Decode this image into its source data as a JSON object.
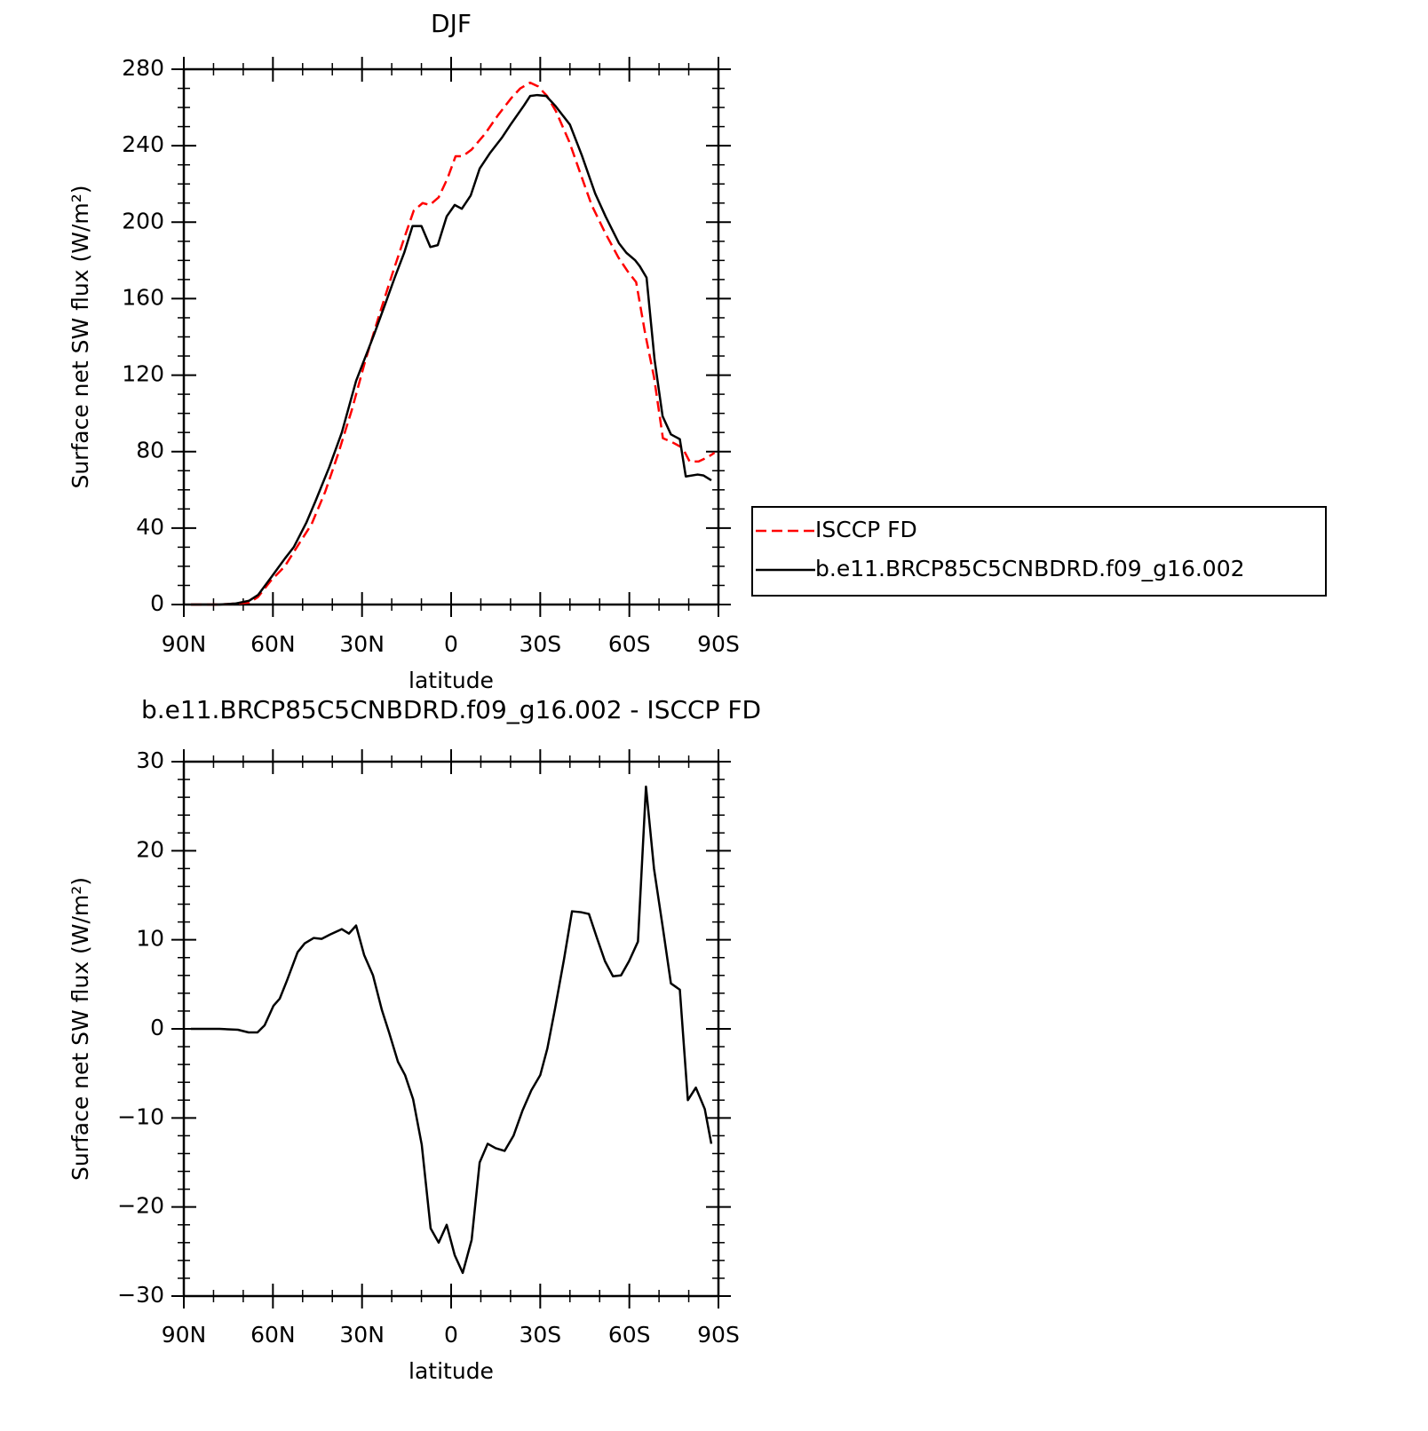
{
  "chart_data": [
    {
      "type": "line",
      "title": "DJF",
      "xlabel": "latitude",
      "ylabel": "Surface net SW flux (W/m²)",
      "xlim": [
        90,
        -90
      ],
      "ylim": [
        0,
        280
      ],
      "xticks": [
        {
          "value": 90,
          "label": "90N"
        },
        {
          "value": 60,
          "label": "60N"
        },
        {
          "value": 30,
          "label": "30N"
        },
        0,
        {
          "value": -30,
          "label": "30S"
        },
        {
          "value": -60,
          "label": "60S"
        },
        {
          "value": -90,
          "label": "90S"
        }
      ],
      "yticks": [
        0,
        40,
        80,
        120,
        160,
        200,
        240,
        280
      ],
      "legend": "right",
      "series": [
        {
          "name": "ISCCP FD",
          "color": "#ff0000",
          "dash": true,
          "x": [
            87.6,
            78,
            72.7,
            68,
            65,
            60.7,
            56,
            51.7,
            47,
            42.4,
            38,
            33.4,
            29,
            24.5,
            20,
            15.5,
            12.6,
            9.6,
            7.2,
            4.2,
            1.2,
            -1.5,
            -3.9,
            -6.9,
            -11.3,
            -15.8,
            -20.3,
            -23.3,
            -26.6,
            -29.3,
            -32.3,
            -35.3,
            -39.8,
            -43.4,
            -47.3,
            -51.8,
            -56.3,
            -59.3,
            -62.3,
            -65.3,
            -68.3,
            -71.3,
            -74.3,
            -77.9,
            -80.3,
            -83.3,
            -86.3,
            -88.7
          ],
          "values": [
            0,
            0,
            0.5,
            1,
            4,
            12.5,
            20,
            30.6,
            42,
            59,
            79,
            102,
            127,
            150,
            172,
            193,
            206,
            210,
            209,
            213,
            223,
            234.5,
            234.5,
            238,
            246,
            256,
            265,
            270,
            273,
            271,
            266,
            258,
            242,
            226,
            209,
            194.6,
            181.6,
            174.6,
            168.6,
            142,
            119,
            87,
            85,
            82,
            74.8,
            74.8,
            77,
            79.4
          ]
        },
        {
          "name": "b.e11.BRCP85C5CNBDRD.f09_g16.002",
          "color": "#000000",
          "dash": false,
          "x": [
            87.6,
            78,
            72.7,
            68,
            65,
            60.7,
            56,
            53,
            48.7,
            45.7,
            41,
            36.8,
            32,
            29,
            26,
            22,
            19,
            15.8,
            13,
            10,
            7,
            4.5,
            1.5,
            -1.2,
            -3.6,
            -6.6,
            -9.6,
            -13,
            -17,
            -20,
            -24.5,
            -26.6,
            -29,
            -32,
            -35,
            -40,
            -44,
            -48.5,
            -52,
            -56.5,
            -59,
            -62,
            -63.5,
            -65.8,
            -68.5,
            -71.2,
            -74,
            -77,
            -79,
            -83,
            -85,
            -87.6
          ],
          "values": [
            0,
            0,
            0.5,
            2,
            5,
            14,
            24,
            30,
            43,
            54,
            72,
            90,
            117,
            129,
            141,
            158,
            171,
            184,
            198,
            198,
            187,
            188,
            203,
            209,
            207,
            214,
            228,
            236,
            244,
            251,
            261,
            266,
            266.5,
            266,
            261,
            251,
            235,
            215,
            203,
            189,
            184,
            180,
            177,
            171,
            128,
            98.5,
            89,
            86.5,
            67,
            68,
            67.5,
            65
          ]
        }
      ]
    },
    {
      "type": "line",
      "title": "b.e11.BRCP85C5CNBDRD.f09_g16.002 - ISCCP FD",
      "xlabel": "latitude",
      "ylabel": "Surface net SW flux (W/m²)",
      "xlim": [
        90,
        -90
      ],
      "ylim": [
        -30,
        30
      ],
      "xticks": [
        {
          "value": 90,
          "label": "90N"
        },
        {
          "value": 60,
          "label": "60N"
        },
        {
          "value": 30,
          "label": "30N"
        },
        0,
        {
          "value": -30,
          "label": "30S"
        },
        {
          "value": -60,
          "label": "60S"
        },
        {
          "value": -90,
          "label": "90S"
        }
      ],
      "yticks": [
        {
          "value": -30,
          "label": "−30"
        },
        {
          "value": -20,
          "label": "−20"
        },
        {
          "value": -10,
          "label": "−10"
        },
        0,
        10,
        20,
        30
      ],
      "color": "#000000",
      "x": [
        87.6,
        78,
        71.8,
        68.2,
        65.2,
        62.8,
        59.8,
        57.7,
        55.3,
        51.7,
        49.3,
        46.3,
        43.6,
        40.7,
        36.8,
        34.4,
        32,
        29.3,
        26.3,
        23.3,
        20.9,
        17.9,
        15.5,
        12.8,
        9.9,
        6.9,
        4.2,
        1.5,
        -1.2,
        -3.9,
        -6.9,
        -9.6,
        -12.3,
        -15,
        -18,
        -21,
        -24,
        -27,
        -30,
        -32.4,
        -35,
        -38,
        -40.7,
        -43.7,
        -46.4,
        -49.1,
        -51.8,
        -54.5,
        -57.2,
        -59.9,
        -62.9,
        -65.6,
        -68.3,
        -71.3,
        -74,
        -77,
        -79.7,
        -82.4,
        -85.4,
        -87.6
      ],
      "values": [
        0,
        0,
        -0.1,
        -0.4,
        -0.4,
        0.4,
        2.6,
        3.4,
        5.4,
        8.6,
        9.6,
        10.2,
        10.1,
        10.6,
        11.2,
        10.7,
        11.6,
        8.3,
        6,
        2.1,
        -0.4,
        -3.7,
        -5.2,
        -7.9,
        -13,
        -22.4,
        -24,
        -22,
        -25.4,
        -27.4,
        -23.7,
        -15,
        -12.9,
        -13.4,
        -13.7,
        -12,
        -9.2,
        -6.9,
        -5.2,
        -2.2,
        2.3,
        7.8,
        13.2,
        13.1,
        12.9,
        10.2,
        7.6,
        5.9,
        6,
        7.6,
        9.8,
        27.2,
        18,
        11.3,
        5.1,
        4.4,
        -8,
        -6.6,
        -9,
        -12.9
      ]
    }
  ]
}
